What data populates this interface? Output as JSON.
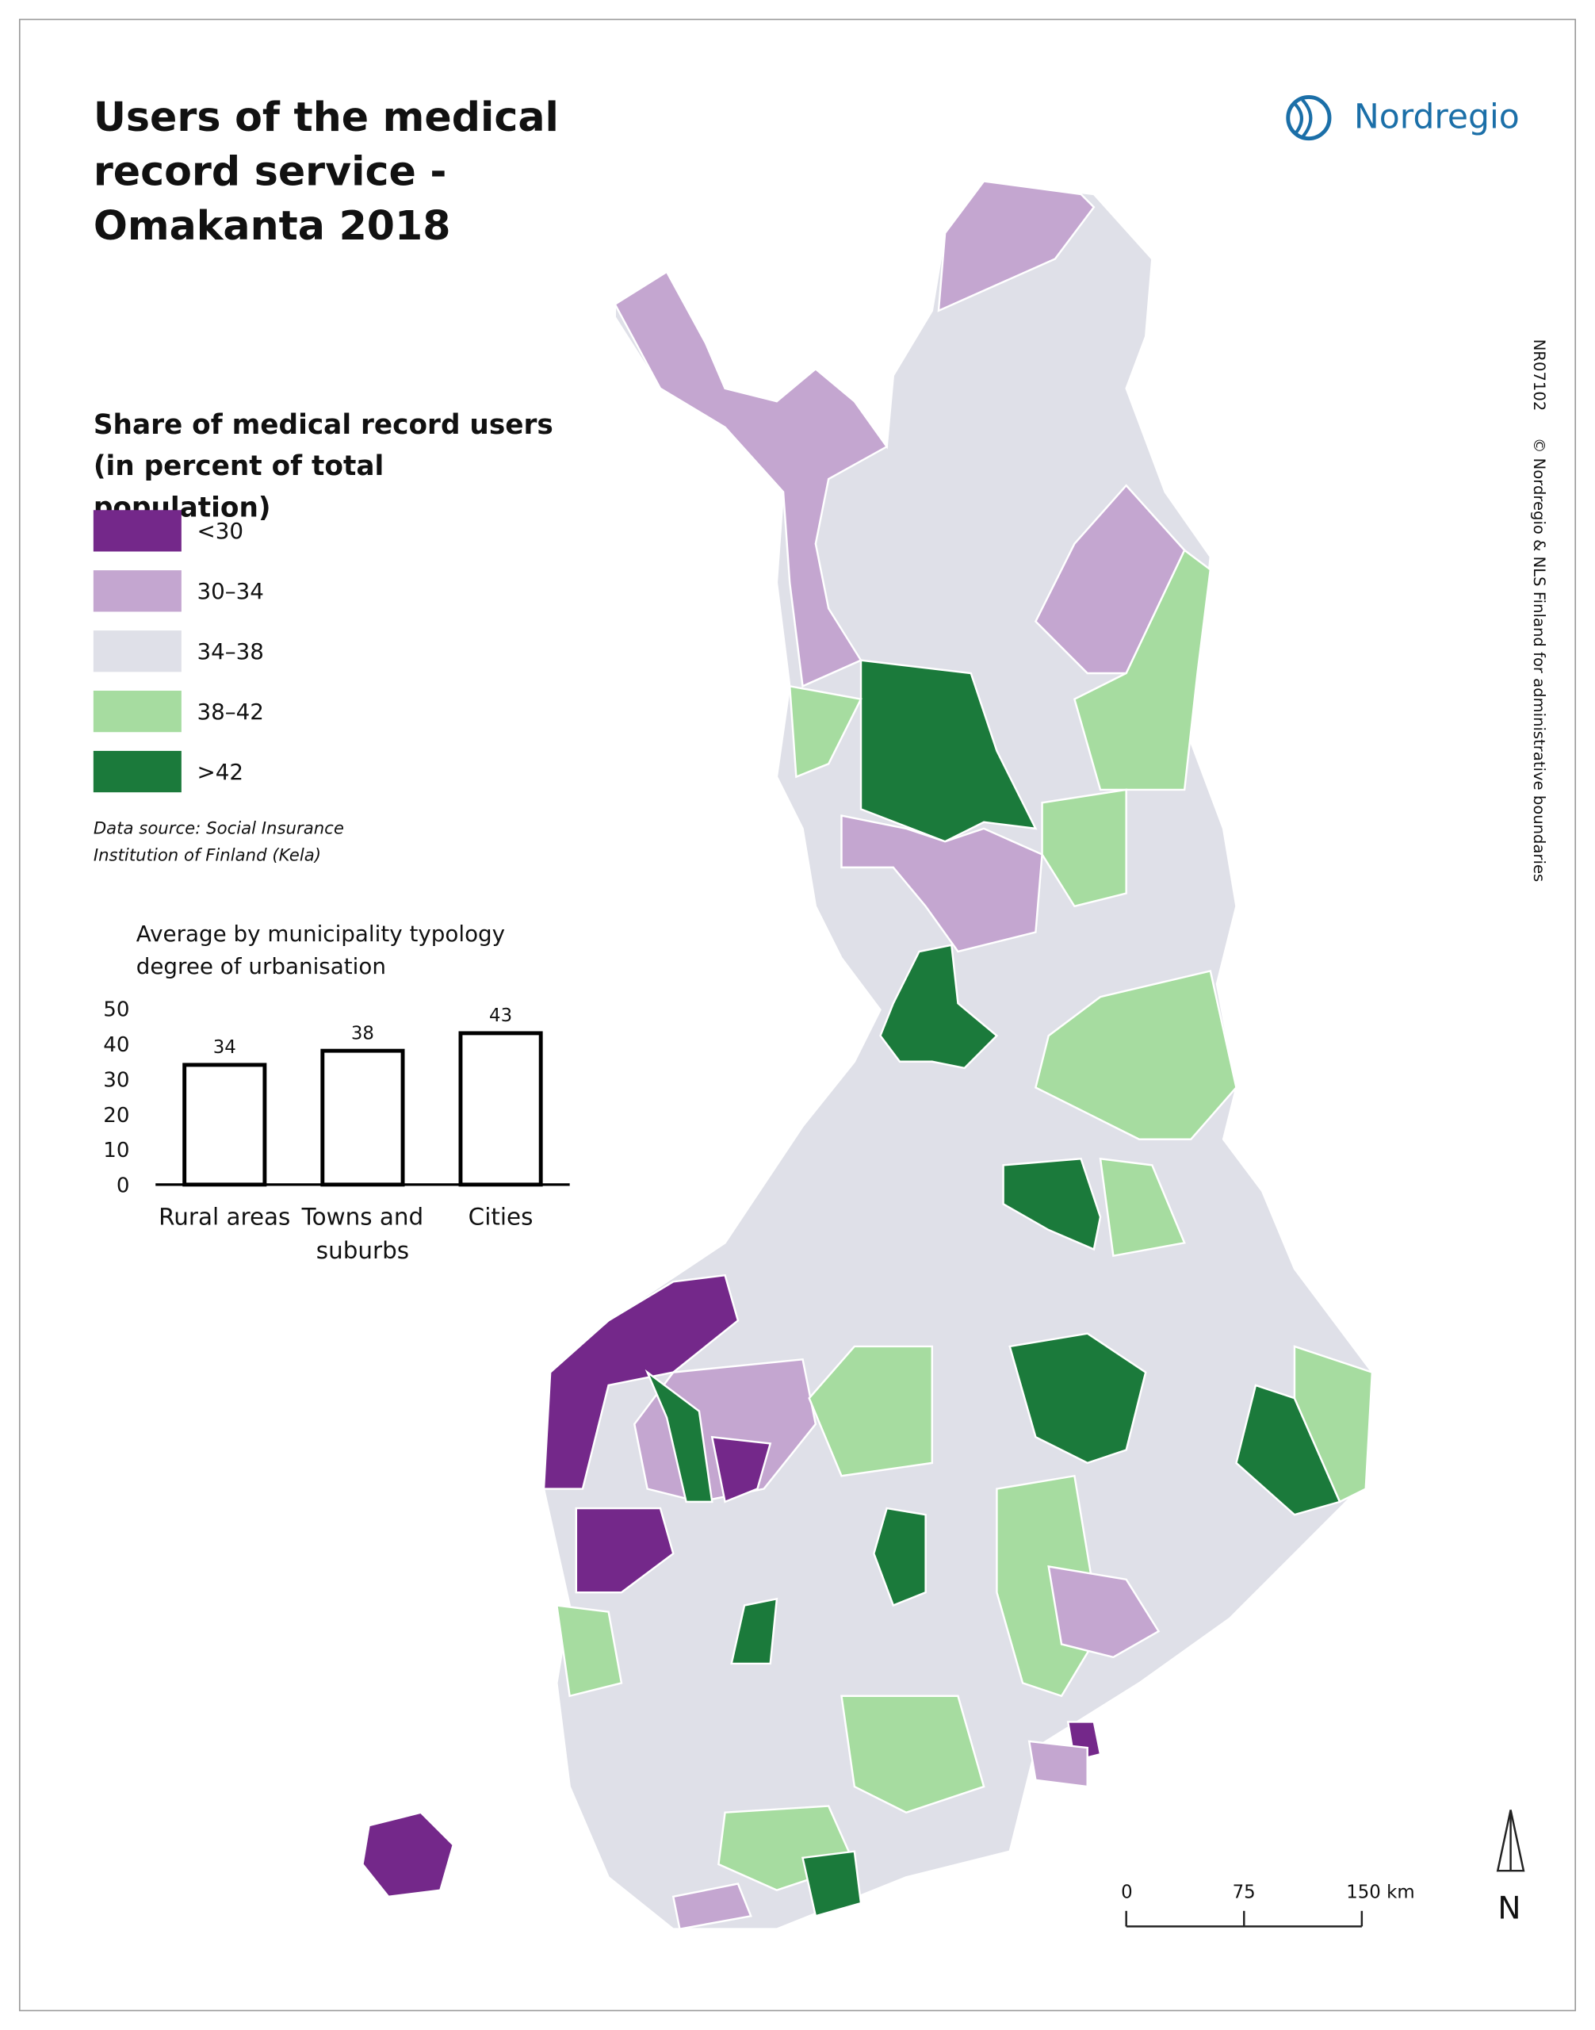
{
  "title": "Users of the medical record service - Omakanta 2018",
  "logo": "Nordregio",
  "legend": {
    "title": "Share of medical record users (in percent of total population)",
    "items": [
      {
        "label": "<30",
        "color": "#74288a"
      },
      {
        "label": "30–34",
        "color": "#c4a6d0"
      },
      {
        "label": "34–38",
        "color": "#dfe0e8"
      },
      {
        "label": "38–42",
        "color": "#a6dca0"
      },
      {
        "label": ">42",
        "color": "#1b7a3b"
      }
    ]
  },
  "data_source": "Data source: Social Insurance Institution of Finland (Kela)",
  "map_id": "NR07102",
  "copyright": "© Nordregio & NLS Finland for administrative boundaries",
  "scale_bar": {
    "labels": [
      "0",
      "75",
      "150 km"
    ]
  },
  "north": "N",
  "chart_data": {
    "type": "bar",
    "title": "Average by municipality typology degree of urbanisation",
    "categories": [
      "Rural areas",
      "Towns and suburbs",
      "Cities"
    ],
    "values": [
      34,
      38,
      43
    ],
    "ylim": [
      0,
      50
    ],
    "yticks": [
      0,
      10,
      20,
      30,
      40,
      50
    ],
    "color": "#ffffff",
    "edgecolor": "#000000"
  }
}
